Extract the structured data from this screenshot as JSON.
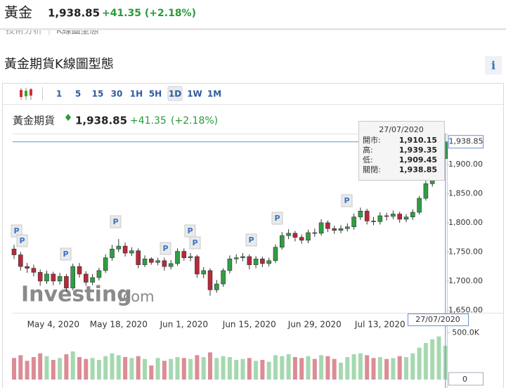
{
  "header": {
    "title": "黃金",
    "price": "1,938.85",
    "change": "+41.35 (+2.18%)"
  },
  "tabs": [
    "技術分析",
    "K線圖型態"
  ],
  "section_title": "黃金期貨K線圖型態",
  "info_icon": "i",
  "toolbar": {
    "intervals": [
      "1",
      "5",
      "15",
      "30",
      "1H",
      "5H",
      "1D",
      "1W",
      "1M"
    ],
    "selected": "1D"
  },
  "legend": {
    "name": "黃金期貨",
    "price": "1,938.85",
    "change": "+41.35",
    "change_pct": "(+2.18%)"
  },
  "tooltip": {
    "date": "27/07/2020",
    "rows": [
      {
        "label": "開市:",
        "value": "1,910.15"
      },
      {
        "label": "高:",
        "value": "1,939.35"
      },
      {
        "label": "低:",
        "value": "1,909.45"
      },
      {
        "label": "關閉:",
        "value": "1,938.85"
      }
    ]
  },
  "crosshair": {
    "x_label": "27/07/2020",
    "y_label": "1,938.85"
  },
  "watermark": {
    "brand": "Investing",
    "suffix": ".com"
  },
  "flag_label": "P",
  "chart_data": {
    "type": "candlestick",
    "categories": [
      null,
      null,
      null,
      null,
      null,
      null,
      "May 4, 2020",
      null,
      null,
      null,
      null,
      null,
      null,
      null,
      null,
      null,
      "May 18, 2020",
      null,
      null,
      null,
      null,
      null,
      null,
      null,
      null,
      null,
      "Jun 1, 2020",
      null,
      null,
      null,
      null,
      null,
      null,
      null,
      null,
      null,
      "Jun 15, 2020",
      null,
      null,
      null,
      null,
      null,
      null,
      null,
      null,
      null,
      "Jun 29, 2020",
      null,
      null,
      null,
      null,
      null,
      null,
      null,
      null,
      null,
      "Jul 13, 2020",
      null,
      null,
      null,
      null,
      null,
      null,
      null,
      null,
      null,
      null
    ],
    "open": [
      1755,
      1745,
      1725,
      1722,
      1715,
      1700,
      1712,
      1700,
      1708,
      1688,
      1725,
      1712,
      1698,
      1706,
      1718,
      1740,
      1755,
      1760,
      1748,
      1752,
      1728,
      1738,
      1732,
      1735,
      1725,
      1730,
      1751,
      1740,
      1742,
      1712,
      1718,
      1685,
      1695,
      1718,
      1738,
      1740,
      1742,
      1728,
      1738,
      1730,
      1735,
      1758,
      1778,
      1782,
      1775,
      1770,
      1783,
      1782,
      1800,
      1790,
      1787,
      1790,
      1793,
      1810,
      1820,
      1803,
      1802,
      1812,
      1811,
      1815,
      1806,
      1810,
      1818,
      1842,
      1867,
      1890,
      1910.15
    ],
    "high": [
      1762,
      1750,
      1731,
      1728,
      1720,
      1718,
      1716,
      1714,
      1712,
      1730,
      1731,
      1717,
      1712,
      1723,
      1746,
      1762,
      1772,
      1766,
      1758,
      1756,
      1744,
      1741,
      1740,
      1740,
      1736,
      1756,
      1756,
      1748,
      1745,
      1724,
      1722,
      1702,
      1722,
      1744,
      1746,
      1748,
      1746,
      1743,
      1742,
      1740,
      1763,
      1784,
      1789,
      1786,
      1780,
      1788,
      1790,
      1806,
      1804,
      1795,
      1796,
      1799,
      1816,
      1826,
      1824,
      1810,
      1818,
      1817,
      1821,
      1819,
      1815,
      1823,
      1846,
      1872,
      1896,
      1906,
      1939.35
    ],
    "low": [
      1738,
      1718,
      1714,
      1708,
      1692,
      1695,
      1693,
      1694,
      1682,
      1684,
      1706,
      1692,
      1693,
      1701,
      1714,
      1735,
      1750,
      1742,
      1743,
      1722,
      1724,
      1728,
      1727,
      1718,
      1720,
      1726,
      1735,
      1734,
      1706,
      1705,
      1675,
      1680,
      1690,
      1713,
      1730,
      1734,
      1720,
      1722,
      1724,
      1725,
      1731,
      1754,
      1772,
      1768,
      1764,
      1765,
      1776,
      1778,
      1784,
      1781,
      1782,
      1785,
      1788,
      1805,
      1797,
      1796,
      1797,
      1804,
      1806,
      1800,
      1801,
      1805,
      1814,
      1838,
      1862,
      1884,
      1909.45
    ],
    "close": [
      1745,
      1725,
      1722,
      1715,
      1700,
      1712,
      1700,
      1708,
      1688,
      1725,
      1712,
      1698,
      1706,
      1718,
      1740,
      1755,
      1760,
      1748,
      1752,
      1728,
      1738,
      1732,
      1735,
      1725,
      1730,
      1751,
      1740,
      1742,
      1712,
      1718,
      1685,
      1695,
      1718,
      1738,
      1740,
      1742,
      1728,
      1738,
      1730,
      1735,
      1758,
      1778,
      1782,
      1775,
      1770,
      1783,
      1782,
      1800,
      1790,
      1787,
      1790,
      1793,
      1810,
      1820,
      1803,
      1802,
      1812,
      1811,
      1815,
      1806,
      1810,
      1818,
      1842,
      1867,
      1890,
      1897,
      1938.85
    ],
    "up_color": "#2f9e44",
    "down_color": "#b8283b",
    "ylim": [
      1648,
      1953
    ],
    "yticks": [
      {
        "value": 1650,
        "label": "1,650.00"
      },
      {
        "value": 1700,
        "label": "1,700.00"
      },
      {
        "value": 1750,
        "label": "1,750.00"
      },
      {
        "value": 1800,
        "label": "1,800.00"
      },
      {
        "value": 1850,
        "label": "1,850.00"
      },
      {
        "value": 1900,
        "label": "1,900.00"
      }
    ],
    "grid": false,
    "volume": {
      "values": [
        230000,
        260000,
        200000,
        240000,
        280000,
        250000,
        210000,
        230000,
        270000,
        300000,
        240000,
        220000,
        230000,
        210000,
        250000,
        280000,
        260000,
        240000,
        230000,
        250000,
        220000,
        150000,
        230000,
        200000,
        220000,
        240000,
        230000,
        220000,
        260000,
        240000,
        290000,
        230000,
        250000,
        240000,
        210000,
        220000,
        230000,
        200000,
        210000,
        190000,
        260000,
        250000,
        270000,
        240000,
        230000,
        250000,
        220000,
        260000,
        250000,
        220000,
        180000,
        240000,
        270000,
        280000,
        260000,
        230000,
        240000,
        220000,
        230000,
        250000,
        240000,
        280000,
        340000,
        390000,
        430000,
        460000,
        360000
      ],
      "ylim": [
        0,
        600000
      ],
      "yticks": [
        0,
        {
          "value": 500000,
          "label": "500.0K"
        }
      ],
      "up_color": "#a6d8b0",
      "down_color": "#dc8c95"
    }
  }
}
